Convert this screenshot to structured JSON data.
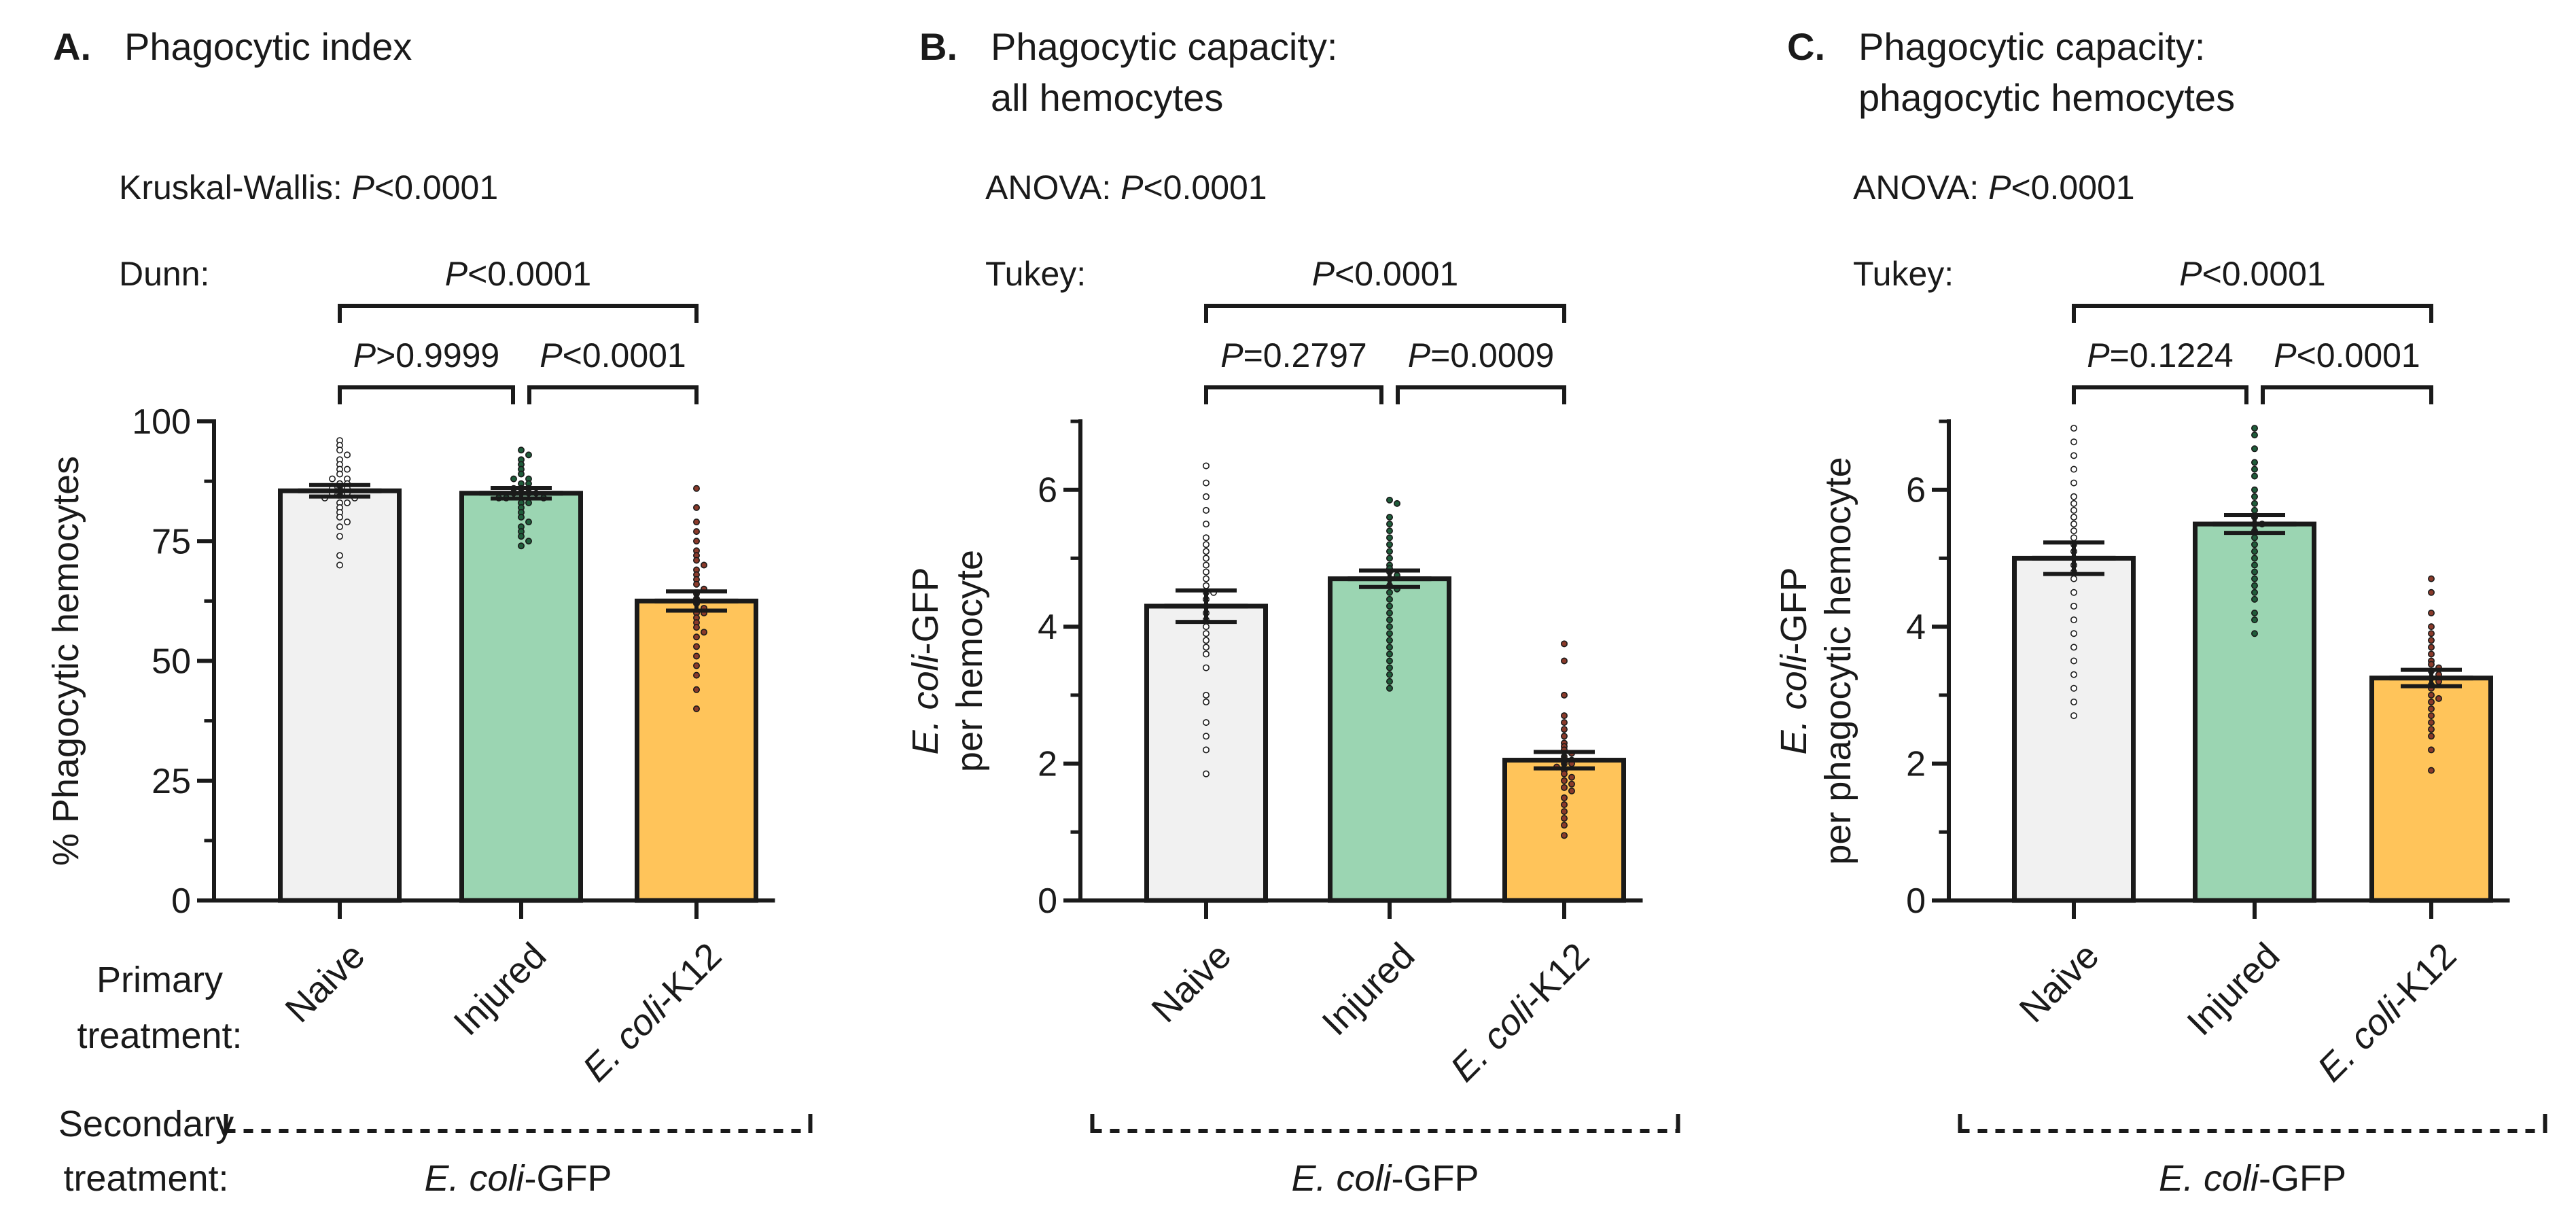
{
  "colors": {
    "naive": "#f1f1f1",
    "injured": "#9bd5b2",
    "ecoli": "#ffc45a",
    "axis": "#1a1a1a",
    "dot_naive": "#ffffff",
    "dot_injured": "#1f5c3a",
    "dot_ecoli": "#8a3a2a"
  },
  "row_labels": {
    "primary_line1": "Primary",
    "primary_line2": "treatment:",
    "secondary_line1": "Secondary",
    "secondary_line2": "treatment:"
  },
  "panels": [
    {
      "letter": "A.",
      "title_lines": [
        "Phagocytic index"
      ],
      "test_name": "Kruskal-Wallis:",
      "test_p_letter": "P",
      "test_p_value": "<0.0001",
      "posthoc_name": "Dunn:",
      "comparisons": {
        "outer": {
          "p": "P",
          "value": "<0.0001"
        },
        "left": {
          "p": "P",
          "value": ">0.9999"
        },
        "right": {
          "p": "P",
          "value": "<0.0001"
        }
      },
      "secondary_treatment": {
        "italic": "E. coli",
        "rest": "-GFP"
      },
      "chart_data": {
        "type": "bar",
        "categories": [
          "Naive",
          "Injured",
          "E. coli-K12"
        ],
        "ylabel": "% Phagocytic hemocytes",
        "ylabel_italic": "",
        "ylabel_line2": "",
        "ylim": [
          0,
          100
        ],
        "yticks": [
          0,
          25,
          50,
          75,
          100
        ],
        "yminor": [
          12.5,
          37.5,
          62.5,
          87.5
        ],
        "means": [
          85.5,
          85,
          62.5
        ],
        "sem": [
          1.2,
          1.1,
          2
        ],
        "points": [
          [
            96,
            95,
            94,
            93,
            92,
            91,
            90,
            90,
            89,
            88,
            88,
            87,
            87,
            86,
            86,
            86,
            85,
            85,
            85,
            84,
            84,
            83,
            83,
            82,
            81,
            80,
            79,
            78,
            76,
            72,
            70
          ],
          [
            94,
            93,
            92,
            91,
            90,
            89,
            88,
            88,
            87,
            87,
            86,
            86,
            86,
            85,
            85,
            85,
            85,
            84,
            84,
            84,
            83,
            83,
            82,
            81,
            80,
            79,
            78,
            77,
            76,
            75,
            74
          ],
          [
            86,
            82,
            79,
            77,
            75,
            73,
            72,
            71,
            70,
            69,
            68,
            67,
            66,
            65,
            64,
            63,
            62,
            61,
            60,
            60,
            59,
            58,
            57,
            56,
            55,
            53,
            51,
            49,
            47,
            44,
            40
          ]
        ]
      }
    },
    {
      "letter": "B.",
      "title_lines": [
        "Phagocytic capacity:",
        "all hemocytes"
      ],
      "test_name": "ANOVA:",
      "test_p_letter": "P",
      "test_p_value": "<0.0001",
      "posthoc_name": "Tukey:",
      "comparisons": {
        "outer": {
          "p": "P",
          "value": "<0.0001"
        },
        "left": {
          "p": "P",
          "value": "=0.2797"
        },
        "right": {
          "p": "P",
          "value": "=0.0009"
        }
      },
      "secondary_treatment": {
        "italic": "E. coli",
        "rest": "-GFP"
      },
      "chart_data": {
        "type": "bar",
        "categories": [
          "Naive",
          "Injured",
          "E. coli-K12"
        ],
        "ylabel": "",
        "ylabel_italic": "E. coli",
        "ylabel_rest": "-GFP",
        "ylabel_line2": "per hemocyte",
        "ylim": [
          0,
          7
        ],
        "yticks": [
          0,
          2,
          4,
          6
        ],
        "yminor": [
          1,
          3,
          5,
          7
        ],
        "means": [
          4.3,
          4.7,
          2.05
        ],
        "sem": [
          0.23,
          0.12,
          0.12
        ],
        "points": [
          [
            6.35,
            6.1,
            5.9,
            5.7,
            5.5,
            5.3,
            5.2,
            5.1,
            5.0,
            4.9,
            4.8,
            4.7,
            4.6,
            4.5,
            4.5,
            4.4,
            4.3,
            4.2,
            4.1,
            4.0,
            3.9,
            3.8,
            3.7,
            3.6,
            3.4,
            3.0,
            2.9,
            2.6,
            2.4,
            2.2,
            1.85
          ],
          [
            5.85,
            5.8,
            5.6,
            5.5,
            5.4,
            5.3,
            5.2,
            5.1,
            5.0,
            4.9,
            4.85,
            4.8,
            4.75,
            4.7,
            4.6,
            4.55,
            4.5,
            4.4,
            4.3,
            4.2,
            4.1,
            4.0,
            3.9,
            3.8,
            3.7,
            3.6,
            3.5,
            3.4,
            3.3,
            3.2,
            3.1
          ],
          [
            3.75,
            3.5,
            3.0,
            2.7,
            2.6,
            2.5,
            2.4,
            2.3,
            2.25,
            2.2,
            2.15,
            2.1,
            2.05,
            2.0,
            2.0,
            1.95,
            1.9,
            1.85,
            1.8,
            1.75,
            1.7,
            1.65,
            1.6,
            1.5,
            1.4,
            1.3,
            1.2,
            1.1,
            0.95
          ]
        ]
      }
    },
    {
      "letter": "C.",
      "title_lines": [
        "Phagocytic capacity:",
        "phagocytic hemocytes"
      ],
      "test_name": "ANOVA:",
      "test_p_letter": "P",
      "test_p_value": "<0.0001",
      "posthoc_name": "Tukey:",
      "comparisons": {
        "outer": {
          "p": "P",
          "value": "<0.0001"
        },
        "left": {
          "p": "P",
          "value": "=0.1224"
        },
        "right": {
          "p": "P",
          "value": "<0.0001"
        }
      },
      "secondary_treatment": {
        "italic": "E. coli",
        "rest": "-GFP"
      },
      "chart_data": {
        "type": "bar",
        "categories": [
          "Naive",
          "Injured",
          "E. coli-K12"
        ],
        "ylabel": "",
        "ylabel_italic": "E. coli",
        "ylabel_rest": "-GFP",
        "ylabel_line2": "per phagocytic hemocyte",
        "ylim": [
          0,
          7
        ],
        "yticks": [
          0,
          2,
          4,
          6
        ],
        "yminor": [
          1,
          3,
          5,
          7
        ],
        "means": [
          5.0,
          5.5,
          3.25
        ],
        "sem": [
          0.23,
          0.13,
          0.12
        ],
        "points": [
          [
            6.9,
            6.7,
            6.5,
            6.3,
            6.1,
            5.9,
            5.8,
            5.7,
            5.6,
            5.5,
            5.4,
            5.3,
            5.2,
            5.1,
            5.0,
            4.9,
            4.8,
            4.7,
            4.5,
            4.3,
            4.1,
            3.9,
            3.7,
            3.5,
            3.3,
            3.1,
            2.9,
            2.7
          ],
          [
            6.9,
            6.8,
            6.6,
            6.4,
            6.3,
            6.2,
            6.0,
            5.9,
            5.8,
            5.7,
            5.6,
            5.5,
            5.5,
            5.4,
            5.3,
            5.2,
            5.1,
            5.0,
            4.9,
            4.8,
            4.7,
            4.6,
            4.5,
            4.4,
            4.2,
            4.1,
            3.9
          ],
          [
            4.7,
            4.5,
            4.2,
            4.0,
            3.9,
            3.8,
            3.7,
            3.6,
            3.5,
            3.45,
            3.4,
            3.35,
            3.3,
            3.25,
            3.2,
            3.15,
            3.1,
            3.0,
            2.95,
            2.9,
            2.8,
            2.7,
            2.6,
            2.5,
            2.4,
            2.2,
            1.9
          ]
        ]
      }
    }
  ]
}
